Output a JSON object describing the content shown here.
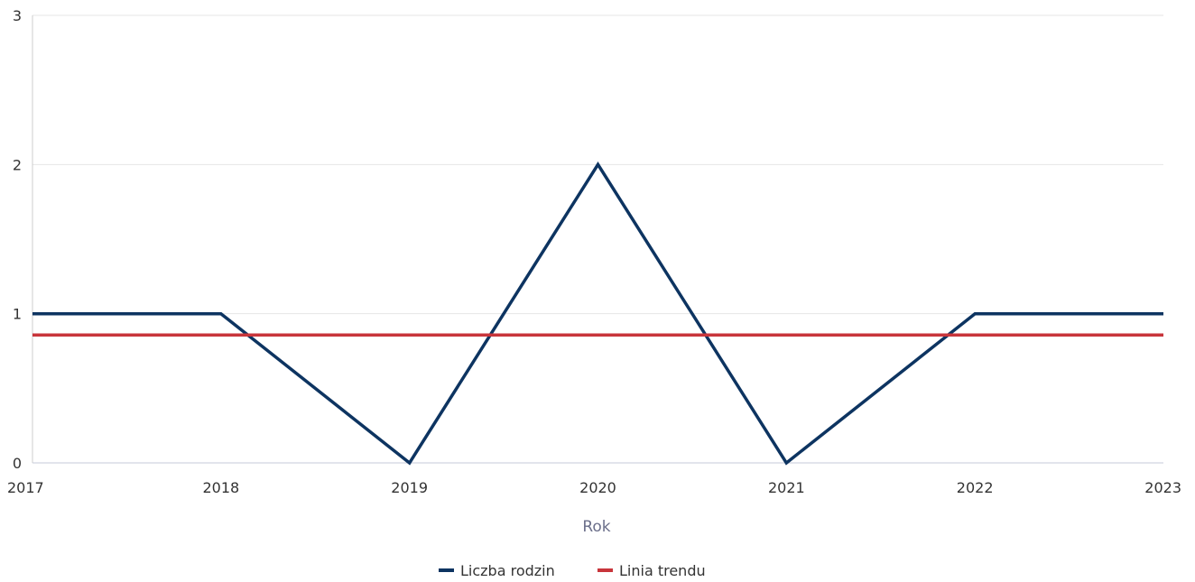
{
  "chart_data": {
    "type": "line",
    "x": [
      2017,
      2018,
      2019,
      2020,
      2021,
      2022,
      2023
    ],
    "xlabel": "Rok",
    "ylabel": "",
    "ylim": [
      0,
      3
    ],
    "yticks": [
      0,
      1,
      2,
      3
    ],
    "grid": true,
    "legend_position": "bottom-center",
    "series": [
      {
        "name": "Liczba rodzin",
        "color": "#0d3461",
        "values": [
          1,
          1,
          0,
          2,
          0,
          1,
          1
        ]
      },
      {
        "name": "Linia trendu",
        "color": "#c8353b",
        "values": [
          0.857,
          0.857,
          0.857,
          0.857,
          0.857,
          0.857,
          0.857
        ]
      }
    ]
  }
}
